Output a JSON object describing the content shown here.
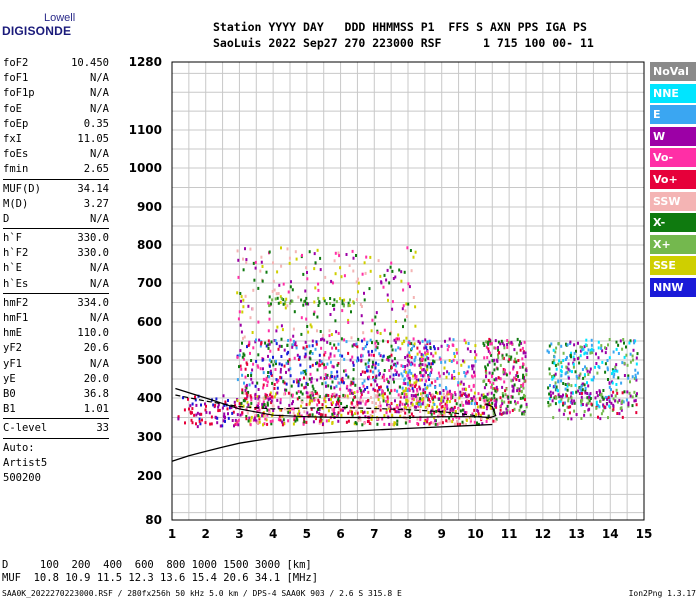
{
  "logo": {
    "line1": "Lowell",
    "line2": "DIGISONDE"
  },
  "header": {
    "line1": "Station YYYY DAY   DDD HHMMSS P1  FFS S AXN PPS IGA PS",
    "line2": "SaoLuis 2022 Sep27 270 223000 RSF      1 715 100 00- 11"
  },
  "params_a": [
    {
      "k": "foF2",
      "v": "10.450"
    },
    {
      "k": "foF1",
      "v": "N/A"
    },
    {
      "k": "foF1p",
      "v": "N/A"
    },
    {
      "k": "foE",
      "v": "N/A"
    },
    {
      "k": "foEp",
      "v": "0.35"
    },
    {
      "k": "fxI",
      "v": "11.05"
    },
    {
      "k": "foEs",
      "v": "N/A"
    },
    {
      "k": "fmin",
      "v": "2.65"
    }
  ],
  "params_b": [
    {
      "k": "MUF(D)",
      "v": "34.14"
    },
    {
      "k": "M(D)",
      "v": "3.27"
    },
    {
      "k": "D",
      "v": "N/A"
    }
  ],
  "params_c": [
    {
      "k": "h`F",
      "v": "330.0"
    },
    {
      "k": "h`F2",
      "v": "330.0"
    },
    {
      "k": "h`E",
      "v": "N/A"
    },
    {
      "k": "h`Es",
      "v": "N/A"
    }
  ],
  "params_d": [
    {
      "k": "hmF2",
      "v": "334.0"
    },
    {
      "k": "hmF1",
      "v": "N/A"
    },
    {
      "k": "hmE",
      "v": "110.0"
    },
    {
      "k": "yF2",
      "v": "20.6"
    },
    {
      "k": "yF1",
      "v": "N/A"
    },
    {
      "k": "yE",
      "v": "20.0"
    },
    {
      "k": "B0",
      "v": "36.8"
    },
    {
      "k": "B1",
      "v": "1.01"
    }
  ],
  "clevel": {
    "k": "C-level",
    "v": "33"
  },
  "autoscale": {
    "line1": "Auto:",
    "line2": "Artist5",
    "line3": "500200"
  },
  "legend": [
    {
      "label": "NoVal",
      "color": "#8a8a8a"
    },
    {
      "label": "NNE",
      "color": "#00e5ff"
    },
    {
      "label": "E",
      "color": "#3aa6f2"
    },
    {
      "label": "W",
      "color": "#9c00a6"
    },
    {
      "label": "Vo-",
      "color": "#ff2fa6"
    },
    {
      "label": "Vo+",
      "color": "#e6003a"
    },
    {
      "label": "SSW",
      "color": "#f4b4b4"
    },
    {
      "label": "X-",
      "color": "#0f7a0f"
    },
    {
      "label": "X+",
      "color": "#74b84e"
    },
    {
      "label": "SSE",
      "color": "#cfcf00"
    },
    {
      "label": "NNW",
      "color": "#1a1ad8"
    }
  ],
  "footer": {
    "line1": "D     100  200  400  600  800 1000 1500 3000 [km]",
    "line2": "MUF  10.8 10.9 11.5 12.3 13.6 15.4 20.6 34.1 [MHz]",
    "file": "SAA0K_2022270223000.RSF / 280fx256h 50 kHz 5.0 km / DPS-4 SAA0K 903 / 2.6 S 315.8 E",
    "version": "Ion2Png 1.3.17"
  },
  "chart_data": {
    "type": "scatter",
    "xlabel": "",
    "ylabel": "",
    "xlim": [
      1,
      15
    ],
    "ylim": [
      80,
      1280
    ],
    "x_ticks": [
      1,
      2,
      3,
      4,
      5,
      6,
      7,
      8,
      9,
      10,
      11,
      12,
      13,
      14,
      15
    ],
    "y_ticks": [
      80,
      200,
      300,
      400,
      500,
      600,
      700,
      800,
      900,
      1000,
      1100,
      1280
    ],
    "regions": [
      {
        "x": [
          1.15,
          2.85
        ],
        "y": [
          330,
          410
        ],
        "colors": [
          "#1a1ad8",
          "#9c00a6",
          "#e6003a"
        ],
        "density": 0.5
      },
      {
        "x": [
          2.85,
          10.6
        ],
        "y": [
          335,
          420
        ],
        "colors": [
          "#e6003a",
          "#ff2fa6",
          "#9c00a6",
          "#f4b4b4",
          "#0f7a0f",
          "#cfcf00"
        ],
        "density": 1.0
      },
      {
        "x": [
          2.9,
          8.8
        ],
        "y": [
          420,
          560
        ],
        "colors": [
          "#9c00a6",
          "#ff2fa6",
          "#e6003a",
          "#3aa6f2",
          "#1a1ad8",
          "#0f7a0f"
        ],
        "density": 0.55
      },
      {
        "x": [
          2.9,
          8.2
        ],
        "y": [
          560,
          800
        ],
        "colors": [
          "#9c00a6",
          "#ff2fa6",
          "#f4b4b4",
          "#0f7a0f",
          "#cfcf00"
        ],
        "density": 0.15
      },
      {
        "x": [
          3.8,
          6.5
        ],
        "y": [
          645,
          665
        ],
        "colors": [
          "#cfcf00",
          "#0f7a0f",
          "#74b84e"
        ],
        "density": 0.7
      },
      {
        "x": [
          7.8,
          10.0
        ],
        "y": [
          380,
          560
        ],
        "colors": [
          "#9c00a6",
          "#3aa6f2",
          "#cfcf00",
          "#ff2fa6"
        ],
        "density": 0.45
      },
      {
        "x": [
          10.2,
          11.5
        ],
        "y": [
          360,
          560
        ],
        "colors": [
          "#0f7a0f",
          "#74b84e",
          "#e6003a",
          "#ff2fa6",
          "#9c00a6"
        ],
        "density": 0.8
      },
      {
        "x": [
          12.1,
          14.8
        ],
        "y": [
          380,
          560
        ],
        "colors": [
          "#00e5ff",
          "#3aa6f2",
          "#0f7a0f",
          "#74b84e",
          "#9c00a6"
        ],
        "density": 0.55
      },
      {
        "x": [
          12.2,
          14.8
        ],
        "y": [
          350,
          420
        ],
        "colors": [
          "#e6003a",
          "#9c00a6",
          "#74b84e"
        ],
        "density": 0.45
      }
    ],
    "lower_curve": [
      [
        1.0,
        238
      ],
      [
        1.5,
        252
      ],
      [
        2.0,
        263
      ],
      [
        2.5,
        274
      ],
      [
        3.0,
        284
      ],
      [
        4.0,
        298
      ],
      [
        5.0,
        307
      ],
      [
        6.0,
        313
      ],
      [
        7.0,
        318
      ],
      [
        8.0,
        322
      ],
      [
        9.0,
        326
      ],
      [
        10.0,
        330
      ],
      [
        10.5,
        332
      ]
    ],
    "profile_curve": [
      [
        1.1,
        425
      ],
      [
        2.0,
        400
      ],
      [
        3.0,
        372
      ],
      [
        4.0,
        356
      ],
      [
        5.0,
        352
      ],
      [
        6.0,
        350
      ],
      [
        7.0,
        350
      ],
      [
        8.0,
        350
      ],
      [
        9.0,
        352
      ],
      [
        10.0,
        352
      ],
      [
        10.45,
        350
      ],
      [
        10.6,
        355
      ],
      [
        10.5,
        378
      ],
      [
        10.3,
        385
      ]
    ],
    "dashed_curve": [
      [
        1.1,
        408
      ],
      [
        2.0,
        392
      ],
      [
        3.0,
        378
      ],
      [
        4.0,
        372
      ],
      [
        5.0,
        374
      ],
      [
        6.0,
        376
      ],
      [
        7.0,
        373
      ],
      [
        8.0,
        370
      ],
      [
        9.0,
        365
      ],
      [
        10.0,
        355
      ],
      [
        10.4,
        348
      ]
    ]
  }
}
